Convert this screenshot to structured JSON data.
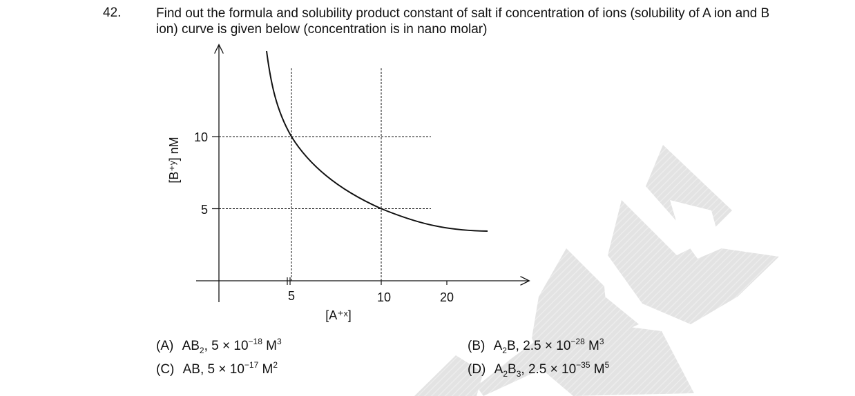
{
  "question": {
    "number": "42.",
    "text": "Find out the formula and solubility product constant of salt if concentration of ions (solubility of A ion and B ion) curve is given below (concentration is in nano molar)"
  },
  "chart_data": {
    "type": "line",
    "xlabel": "[A⁺ˣ]",
    "ylabel": "[B⁺ʸ] nM",
    "x_ticks": [
      "5",
      "10",
      "20"
    ],
    "y_ticks": [
      "10",
      "5"
    ],
    "reference_points": [
      {
        "x": 5,
        "y": 10
      },
      {
        "x": 10,
        "y": 5
      }
    ],
    "grid": false
  },
  "options": {
    "A": {
      "label": "(A)",
      "formula": "AB",
      "formula_sub": "2",
      "sep": ",",
      "coef": "5 × 10",
      "exp": "−18",
      "unit": "M",
      "unit_exp": "3"
    },
    "B": {
      "label": "(B)",
      "formula": "A",
      "formula_sub": "2",
      "formula_rest": "B",
      "sep": ",",
      "coef": "2.5 × 10",
      "exp": "−28",
      "unit": "M",
      "unit_exp": "3"
    },
    "C": {
      "label": "(C)",
      "formula": "AB",
      "sep": ",",
      "coef": "5 × 10",
      "exp": "−17",
      "unit": "M",
      "unit_exp": "2"
    },
    "D": {
      "label": "(D)",
      "formula": "A",
      "formula_sub": "2",
      "formula_rest": "B",
      "formula_sub2": "3",
      "sep": ",",
      "coef": "2.5 × 10",
      "exp": "−35",
      "unit": "M",
      "unit_exp": "5"
    }
  }
}
